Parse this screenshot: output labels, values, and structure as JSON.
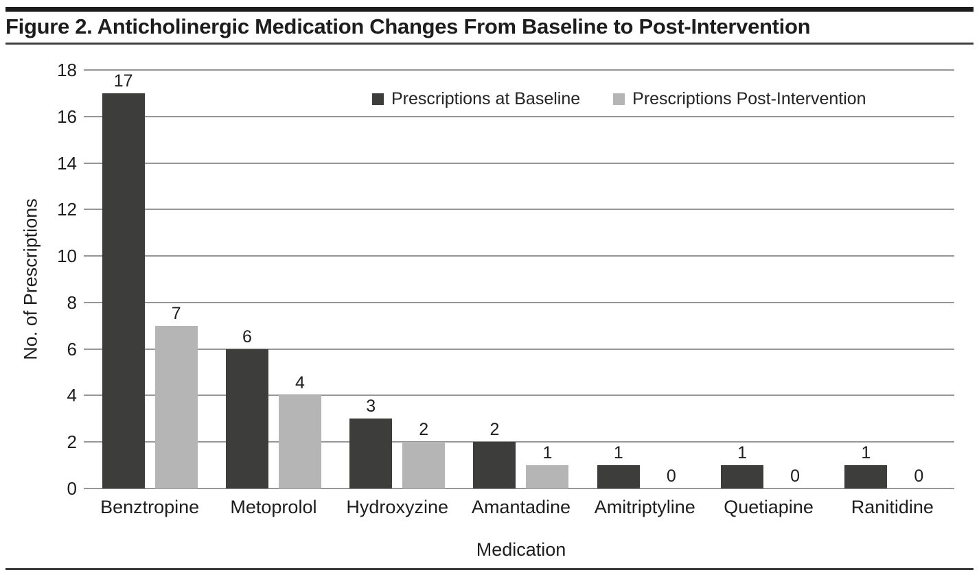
{
  "title": "Figure 2. Anticholinergic Medication Changes From Baseline to Post-Intervention",
  "chart_data": {
    "type": "bar",
    "title": "Figure 2. Anticholinergic Medication Changes From Baseline to Post-Intervention",
    "xlabel": "Medication",
    "ylabel": "No. of Prescriptions",
    "ylim": [
      0,
      18
    ],
    "ytick_step": 2,
    "grid": true,
    "legend_position": "top-inside",
    "categories": [
      "Benztropine",
      "Metoprolol",
      "Hydroxyzine",
      "Amantadine",
      "Amitriptyline",
      "Quetiapine",
      "Ranitidine"
    ],
    "series": [
      {
        "name": "Prescriptions at Baseline",
        "color": "#3d3d3c",
        "values": [
          17,
          6,
          3,
          2,
          1,
          1,
          1
        ]
      },
      {
        "name": "Prescriptions Post-Intervention",
        "color": "#b5b5b5",
        "values": [
          7,
          4,
          2,
          1,
          0,
          0,
          0
        ]
      }
    ]
  },
  "colors": {
    "top_bar": "#1c1c1c",
    "rules": "#3a3a3a",
    "gridline": "#969696",
    "text": "#1d1d1d"
  }
}
